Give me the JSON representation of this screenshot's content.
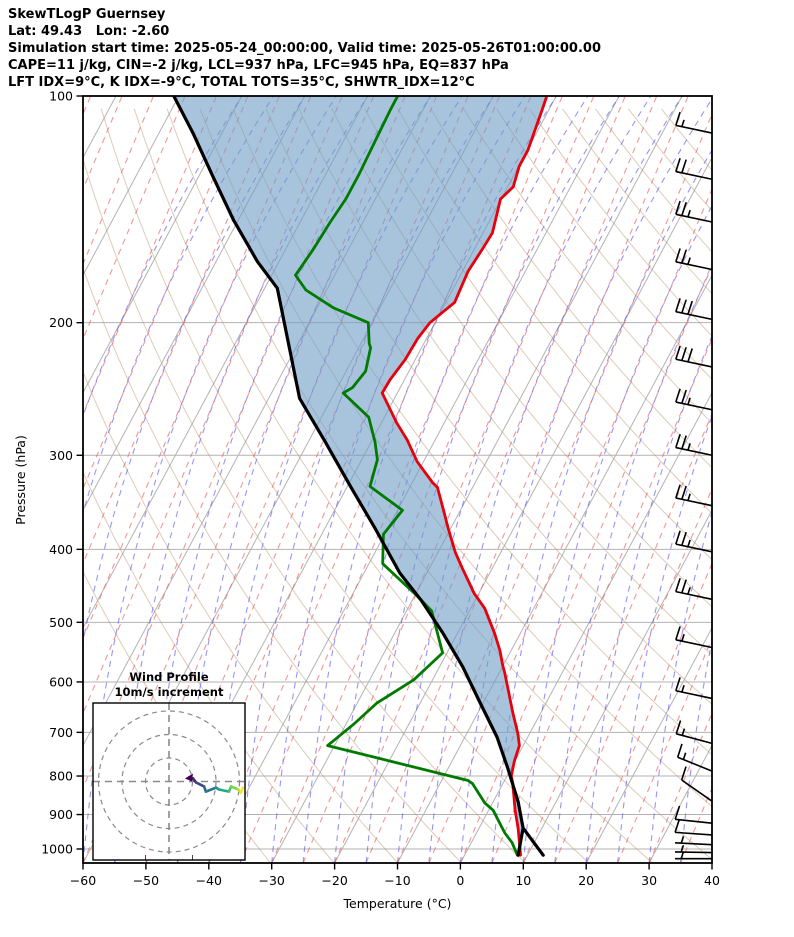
{
  "header": {
    "title": "SkewTLogP Guernsey",
    "coords": "Lat: 49.43   Lon: -2.60",
    "sim_time": "Simulation start time: 2025-05-24_00:00:00, Valid time: 2025-05-26T01:00:00.00",
    "cape_line": "CAPE=11 j/kg, CIN=-2 j/kg, LCL=937 hPa, LFC=945 hPa, EQ=837 hPa",
    "index_line": "LFT IDX=9°C, K IDX=-9°C, TOTAL TOTS=35°C, SHWTR_IDX=12°C"
  },
  "chart_data": {
    "type": "line",
    "subtype": "skewT-logP sounding",
    "xlabel": "Temperature (°C)",
    "ylabel": "Pressure (hPa)",
    "x_ticks": {
      "values": [
        -60,
        -50,
        -40,
        -30,
        -20,
        -10,
        0,
        10,
        20,
        30,
        40
      ],
      "labels": [
        "−60",
        "−50",
        "−40",
        "−30",
        "−20",
        "−10",
        "0",
        "10",
        "20",
        "30",
        "40"
      ]
    },
    "y_ticks": {
      "values": [
        100,
        200,
        300,
        400,
        500,
        600,
        700,
        800,
        900,
        1000
      ],
      "labels": [
        "100",
        "200",
        "300",
        "400",
        "500",
        "600",
        "700",
        "800",
        "900",
        "1000"
      ]
    },
    "xlim": [
      -60,
      40
    ],
    "plim": [
      100,
      1044
    ],
    "grid": true,
    "temperature_profile_pT": [
      [
        100,
        -51.5
      ],
      [
        104,
        -51.1
      ],
      [
        118,
        -49.9
      ],
      [
        124,
        -49.9
      ],
      [
        132,
        -49.1
      ],
      [
        137,
        -50.1
      ],
      [
        152,
        -48.5
      ],
      [
        159,
        -48.7
      ],
      [
        171,
        -49.1
      ],
      [
        188,
        -48.6
      ],
      [
        200,
        -50.8
      ],
      [
        210,
        -51.4
      ],
      [
        224,
        -51.6
      ],
      [
        238,
        -52.3
      ],
      [
        248,
        -52.4
      ],
      [
        261,
        -49.7
      ],
      [
        272,
        -47.5
      ],
      [
        286,
        -44.5
      ],
      [
        306,
        -41.0
      ],
      [
        326,
        -36.8
      ],
      [
        331,
        -35.6
      ],
      [
        354,
        -32.8
      ],
      [
        376,
        -30.3
      ],
      [
        404,
        -27.2
      ],
      [
        426,
        -24.5
      ],
      [
        458,
        -20.7
      ],
      [
        479,
        -17.8
      ],
      [
        517,
        -14.1
      ],
      [
        545,
        -11.8
      ],
      [
        570,
        -10.1
      ],
      [
        584,
        -9.1
      ],
      [
        660,
        -4.4
      ],
      [
        702,
        -1.9
      ],
      [
        729,
        -0.6
      ],
      [
        764,
        -0.1
      ],
      [
        800,
        0.7
      ],
      [
        817,
        1.5
      ],
      [
        888,
        4.2
      ],
      [
        938,
        6.2
      ],
      [
        1019,
        8.9
      ]
    ],
    "dewpoint_profile_pT": [
      [
        100,
        -75.2
      ],
      [
        104,
        -75.2
      ],
      [
        113,
        -75.0
      ],
      [
        127,
        -74.7
      ],
      [
        137,
        -74.7
      ],
      [
        147,
        -75.2
      ],
      [
        160,
        -75.6
      ],
      [
        173,
        -76.2
      ],
      [
        181,
        -73.3
      ],
      [
        191,
        -67.5
      ],
      [
        200,
        -60.6
      ],
      [
        213,
        -58.7
      ],
      [
        216,
        -58.1
      ],
      [
        232,
        -56.9
      ],
      [
        244,
        -57.6
      ],
      [
        248,
        -58.6
      ],
      [
        267,
        -52.5
      ],
      [
        288,
        -49.4
      ],
      [
        304,
        -47.5
      ],
      [
        330,
        -46.4
      ],
      [
        355,
        -39.2
      ],
      [
        382,
        -40.2
      ],
      [
        418,
        -37.8
      ],
      [
        460,
        -29.8
      ],
      [
        483,
        -26.0
      ],
      [
        549,
        -20.7
      ],
      [
        596,
        -23.0
      ],
      [
        640,
        -26.9
      ],
      [
        681,
        -28.7
      ],
      [
        729,
        -31.1
      ],
      [
        811,
        -5.8
      ],
      [
        819,
        -4.8
      ],
      [
        869,
        -1.2
      ],
      [
        888,
        0.7
      ],
      [
        935,
        3.5
      ],
      [
        952,
        4.5
      ],
      [
        981,
        6.5
      ],
      [
        1019,
        8.4
      ]
    ],
    "parcel_profile_pT": [
      [
        100,
        -110.8
      ],
      [
        112,
        -104.6
      ],
      [
        128,
        -97.7
      ],
      [
        146,
        -90.8
      ],
      [
        166,
        -83.4
      ],
      [
        180,
        -78.0
      ],
      [
        252,
        -65.1
      ],
      [
        288,
        -57.3
      ],
      [
        330,
        -49.5
      ],
      [
        376,
        -41.9
      ],
      [
        430,
        -34.3
      ],
      [
        468,
        -28.5
      ],
      [
        517,
        -22.3
      ],
      [
        573,
        -16.3
      ],
      [
        637,
        -10.7
      ],
      [
        710,
        -4.9
      ],
      [
        780,
        -0.6
      ],
      [
        866,
        4.0
      ],
      [
        938,
        7.0
      ]
    ],
    "parcel_surface_branch_a_pT": [
      [
        938,
        7.0
      ],
      [
        1019,
        8.5
      ]
    ],
    "parcel_surface_branch_b_pT": [
      [
        938,
        7.0
      ],
      [
        1019,
        12.5
      ]
    ],
    "wind_barbs": [
      {
        "p": 112,
        "speed": 15,
        "angle": 12
      },
      {
        "p": 129,
        "speed": 20,
        "angle": 12
      },
      {
        "p": 147,
        "speed": 25,
        "angle": 12
      },
      {
        "p": 170,
        "speed": 25,
        "angle": 12
      },
      {
        "p": 198,
        "speed": 30,
        "angle": 12
      },
      {
        "p": 229,
        "speed": 30,
        "angle": 12
      },
      {
        "p": 261,
        "speed": 25,
        "angle": 12
      },
      {
        "p": 300,
        "speed": 25,
        "angle": 12
      },
      {
        "p": 350,
        "speed": 25,
        "angle": 12
      },
      {
        "p": 403,
        "speed": 25,
        "angle": 12
      },
      {
        "p": 466,
        "speed": 25,
        "angle": 12
      },
      {
        "p": 540,
        "speed": 15,
        "angle": 12
      },
      {
        "p": 631,
        "speed": 15,
        "angle": 12
      },
      {
        "p": 724,
        "speed": 15,
        "angle": 15
      },
      {
        "p": 788,
        "speed": 15,
        "angle": 22
      },
      {
        "p": 864,
        "speed": 10,
        "angle": 35
      },
      {
        "p": 924,
        "speed": 10,
        "angle": 6
      },
      {
        "p": 958,
        "speed": 10,
        "angle": 4
      },
      {
        "p": 987,
        "speed": 5,
        "angle": 3
      },
      {
        "p": 1011,
        "speed": 5,
        "angle": 1
      },
      {
        "p": 1030,
        "speed": 5,
        "angle": 0
      }
    ],
    "hodograph": {
      "title": "Wind Profile",
      "subtitle": "10m/s increment",
      "ring_increment_ms": 10,
      "rings_ms": [
        10,
        20,
        30
      ],
      "trace_u_ms": [
        8.5,
        10.2,
        11.5,
        14.9,
        15.7,
        20.0,
        21.3,
        25.5,
        26.4,
        29.4,
        30.6,
        31.5
      ],
      "trace_v_ms": [
        1.7,
        1.3,
        -0.4,
        -2.1,
        -4.3,
        -2.6,
        -3.4,
        -4.3,
        -2.1,
        -3.4,
        -4.7,
        -2.6
      ]
    },
    "colors": {
      "temperature": "#e8000b",
      "dewpoint": "#007a00",
      "parcel": "#000000",
      "cape_fill": "rgba(110,156,196,0.60)",
      "isotherm": "#b3b3b3",
      "pressure_grid": "#b3b3b3",
      "dry_adiabat": "rgba(180,140,100,0.45)",
      "mixing_ratio_dashed": "rgba(235,85,85,0.62)",
      "moist_adiabat_dashed": "rgba(85,85,235,0.62)",
      "hodo_grid": "#8a8a8a",
      "viridis": [
        "#440154",
        "#482576",
        "#414487",
        "#35608d",
        "#2a788e",
        "#21918c",
        "#22a884",
        "#44bf70",
        "#7ad151",
        "#bddf26",
        "#fde725"
      ]
    },
    "legend_position": "none"
  }
}
